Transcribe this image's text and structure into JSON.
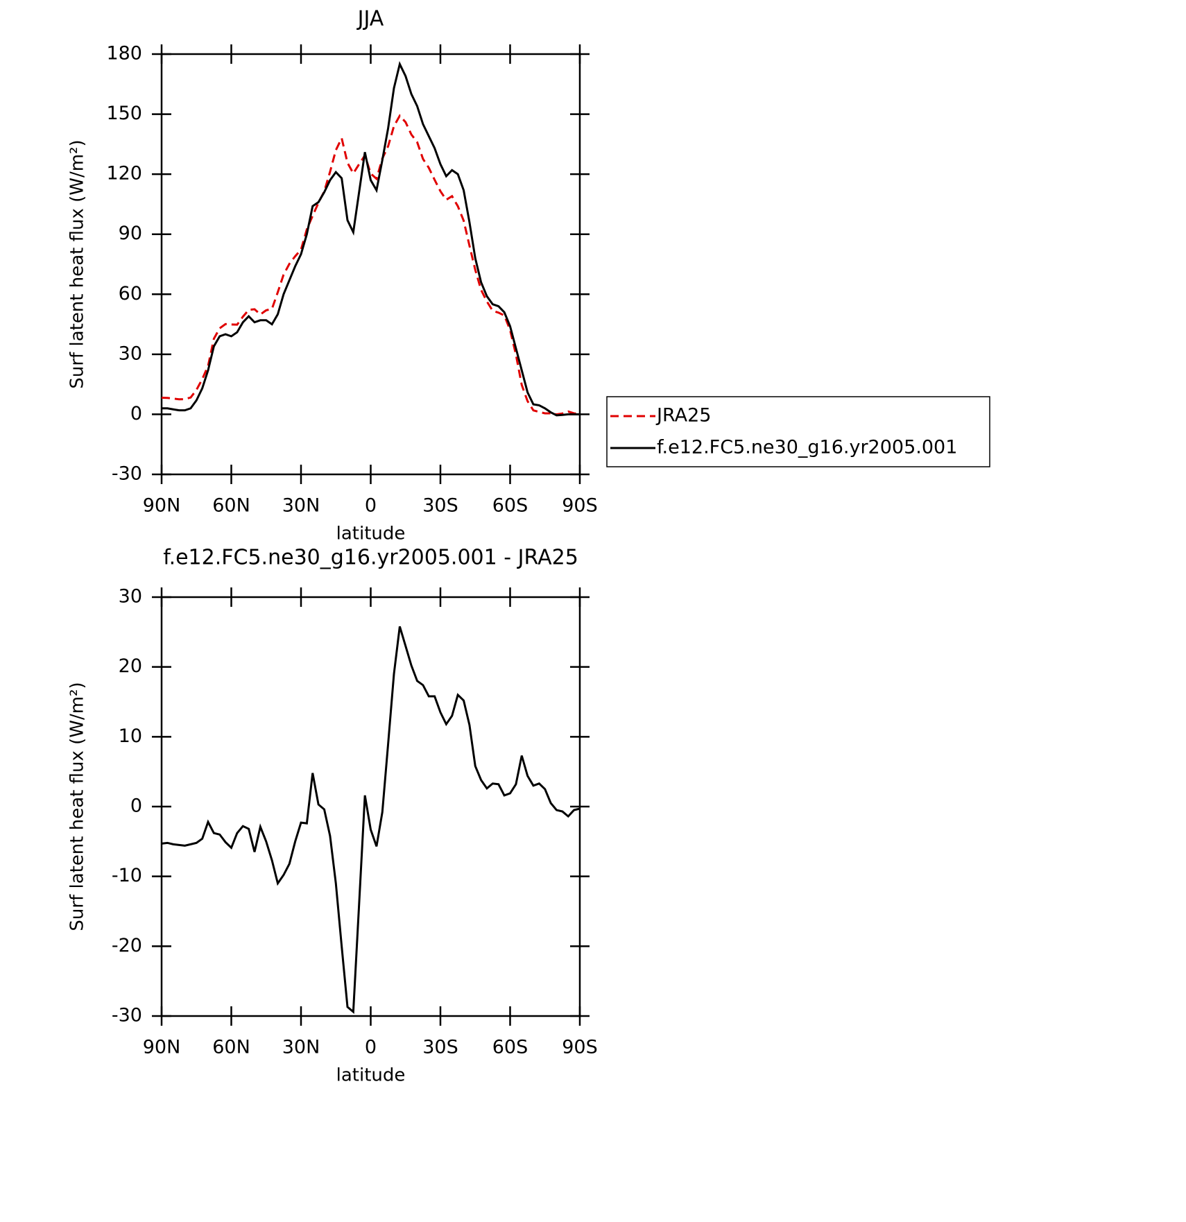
{
  "chart_data": [
    {
      "type": "line",
      "title": "JJA",
      "xlabel": "latitude",
      "ylabel": "Surf latent heat flux (W/m²)",
      "x": [
        90,
        87.5,
        85,
        82.5,
        80,
        77.5,
        75,
        72.5,
        70,
        67.5,
        65,
        62.5,
        60,
        57.5,
        55,
        52.5,
        50,
        47.5,
        45,
        42.5,
        40,
        37.5,
        35,
        32.5,
        30,
        27.5,
        25,
        22.5,
        20,
        17.5,
        15,
        12.5,
        10,
        7.5,
        5,
        2.5,
        0,
        -2.5,
        -5,
        -7.5,
        -10,
        -12.5,
        -15,
        -17.5,
        -20,
        -22.5,
        -25,
        -27.5,
        -30,
        -32.5,
        -35,
        -37.5,
        -40,
        -42.5,
        -45,
        -47.5,
        -50,
        -52.5,
        -55,
        -57.5,
        -60,
        -62.5,
        -65,
        -67.5,
        -70,
        -72.5,
        -75,
        -77.5,
        -80,
        -82.5,
        -85,
        -87.5,
        -90
      ],
      "series": [
        {
          "name": "JRA25",
          "color": "#e00000",
          "dash": true,
          "values": [
            8.3,
            8.2,
            7.9,
            7.5,
            7.6,
            8.4,
            12.2,
            17.6,
            24.2,
            37.8,
            43,
            45.1,
            44.9,
            44.8,
            48.8,
            52.2,
            52.5,
            49.9,
            52,
            52.7,
            61,
            69.8,
            75.2,
            79,
            82.3,
            92.4,
            99.2,
            105.7,
            111.4,
            121.2,
            132,
            138,
            125.7,
            120.4,
            125,
            129.4,
            120.3,
            117.7,
            127.8,
            134,
            144,
            149.2,
            146,
            139.8,
            136,
            127.6,
            123.2,
            117.2,
            111.5,
            107.2,
            109,
            104,
            96.8,
            84.3,
            72.2,
            62.2,
            56.4,
            51.7,
            50.8,
            49.4,
            42.1,
            29.8,
            14.7,
            6.6,
            2,
            1.2,
            0.5,
            0.5,
            0,
            0.4,
            1.4,
            0.5,
            0.3
          ]
        },
        {
          "name": "f.e12.FC5.ne30_g16.yr2005.001",
          "color": "#000000",
          "dash": false,
          "values": [
            3,
            3,
            2.5,
            2,
            2,
            3,
            7,
            13,
            22,
            34,
            39,
            40,
            39,
            41,
            46,
            49,
            46,
            47,
            47,
            45,
            50,
            60,
            67,
            74,
            80,
            90,
            104,
            106,
            111,
            117,
            121,
            118,
            97,
            91,
            111,
            131,
            117,
            112,
            127,
            143,
            163,
            175,
            169,
            160,
            154,
            145,
            139,
            133,
            125,
            119,
            122,
            120,
            112,
            96,
            78,
            66,
            59,
            55,
            54,
            51,
            44,
            33,
            22,
            11,
            5,
            4.5,
            3,
            1,
            -0.5,
            -0.3,
            0,
            0,
            0
          ]
        }
      ],
      "xlim": [
        90,
        -90
      ],
      "xticks": [
        {
          "value": 90,
          "label": "90N"
        },
        {
          "value": 60,
          "label": "60N"
        },
        {
          "value": 30,
          "label": "30N"
        },
        0,
        {
          "value": -30,
          "label": "30S"
        },
        {
          "value": -60,
          "label": "60S"
        },
        {
          "value": -90,
          "label": "90S"
        }
      ],
      "ylim": [
        -30,
        180
      ],
      "yticks": [
        -30,
        0,
        30,
        60,
        90,
        120,
        150,
        180
      ],
      "legend": "right"
    },
    {
      "type": "line",
      "title": "f.e12.FC5.ne30_g16.yr2005.001 - JRA25",
      "xlabel": "latitude",
      "ylabel": "Surf latent heat flux (W/m²)",
      "x": [
        90,
        87.5,
        85,
        82.5,
        80,
        77.5,
        75,
        72.5,
        70,
        67.5,
        65,
        62.5,
        60,
        57.5,
        55,
        52.5,
        50,
        47.5,
        45,
        42.5,
        40,
        37.5,
        35,
        32.5,
        30,
        27.5,
        25,
        22.5,
        20,
        17.5,
        15,
        12.5,
        10,
        7.5,
        5,
        2.5,
        0,
        -2.5,
        -5,
        -7.5,
        -10,
        -12.5,
        -15,
        -17.5,
        -20,
        -22.5,
        -25,
        -27.5,
        -30,
        -32.5,
        -35,
        -37.5,
        -40,
        -42.5,
        -45,
        -47.5,
        -50,
        -52.5,
        -55,
        -57.5,
        -60,
        -62.5,
        -65,
        -67.5,
        -70,
        -72.5,
        -75,
        -77.5,
        -80,
        -82.5,
        -85,
        -87.5,
        -90
      ],
      "values": [
        -5.3,
        -5.2,
        -5.4,
        -5.5,
        -5.6,
        -5.4,
        -5.2,
        -4.6,
        -2.2,
        -3.8,
        -4,
        -5.1,
        -5.9,
        -3.8,
        -2.8,
        -3.2,
        -6.5,
        -2.9,
        -5,
        -7.7,
        -11,
        -9.8,
        -8.2,
        -5,
        -2.3,
        -2.4,
        4.8,
        0.3,
        -0.4,
        -4.2,
        -11,
        -20,
        -28.7,
        -29.4,
        -14,
        1.6,
        -3.3,
        -5.7,
        -0.8,
        9,
        19,
        25.8,
        23,
        20.2,
        18,
        17.4,
        15.8,
        15.8,
        13.5,
        11.8,
        13,
        16,
        15.2,
        11.7,
        5.8,
        3.8,
        2.6,
        3.3,
        3.2,
        1.6,
        1.9,
        3.2,
        7.3,
        4.4,
        3,
        3.3,
        2.5,
        0.5,
        -0.5,
        -0.7,
        -1.4,
        -0.5,
        -0.3
      ],
      "color": "#000000",
      "xlim": [
        90,
        -90
      ],
      "xticks": [
        {
          "value": 90,
          "label": "90N"
        },
        {
          "value": 60,
          "label": "60N"
        },
        {
          "value": 30,
          "label": "30N"
        },
        0,
        {
          "value": -30,
          "label": "30S"
        },
        {
          "value": -60,
          "label": "60S"
        },
        {
          "value": -90,
          "label": "90S"
        }
      ],
      "ylim": [
        -30,
        30
      ],
      "yticks": [
        -30,
        -20,
        -10,
        0,
        10,
        20,
        30
      ]
    }
  ]
}
